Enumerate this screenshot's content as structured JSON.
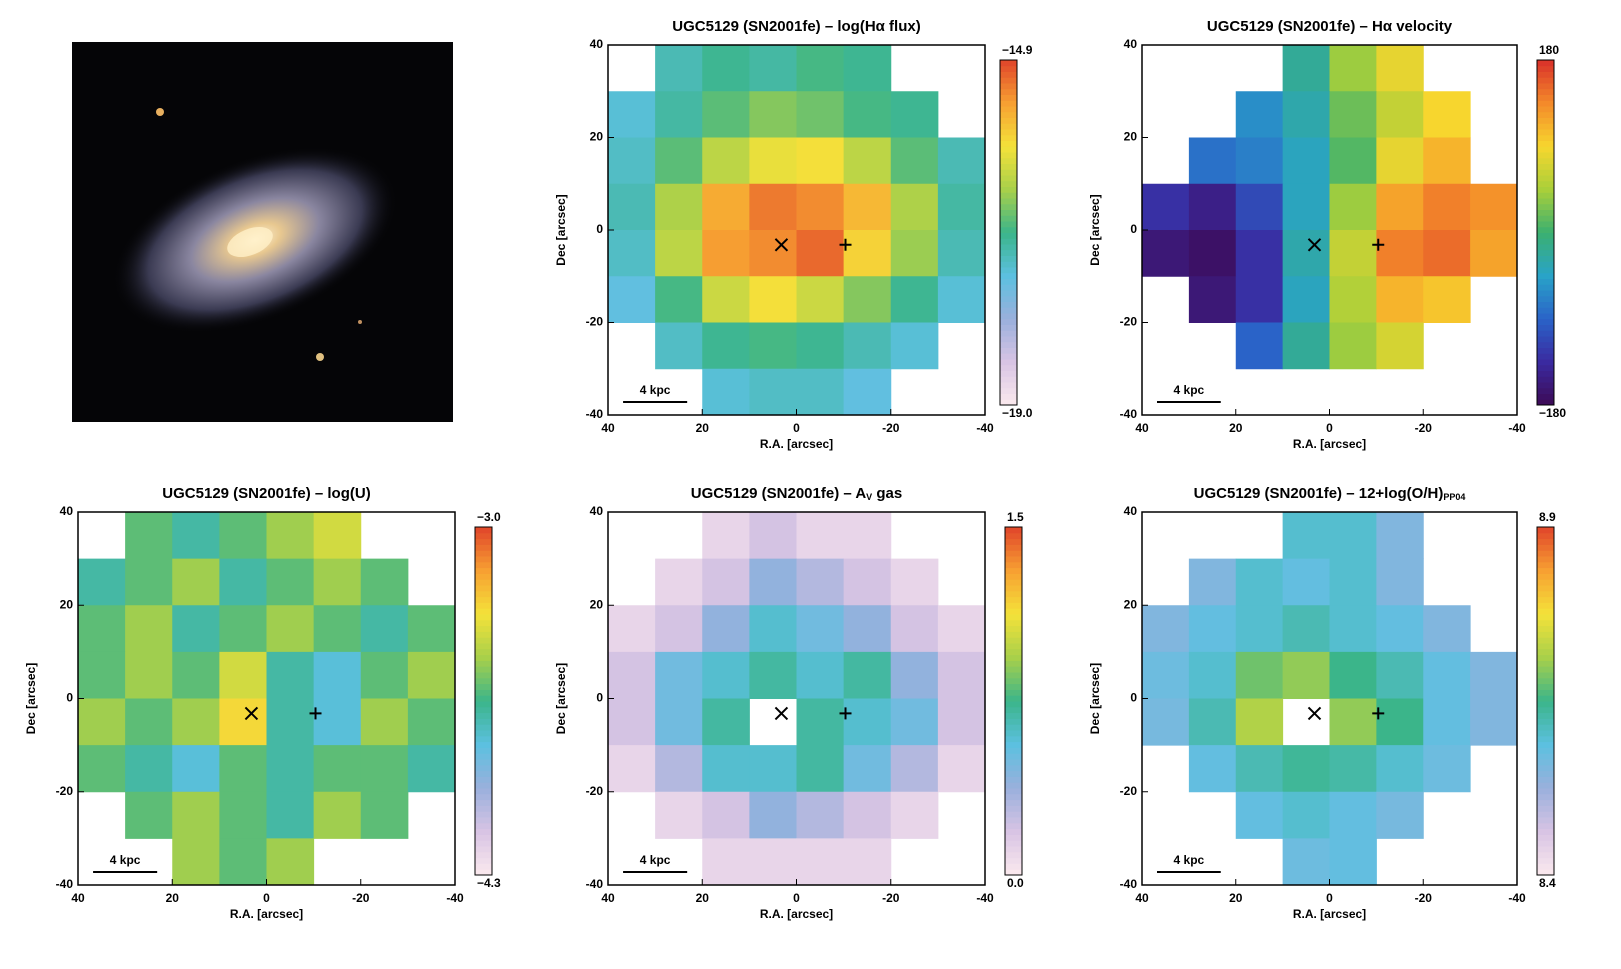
{
  "chart_data": [
    {
      "type": "heatmap",
      "title": "UGC5129 (SN2001fe) – log(Hα flux)",
      "xlabel": "R.A. [arcsec]",
      "ylabel": "Dec [arcsec]",
      "xlim": [
        40,
        -40
      ],
      "ylim": [
        -40,
        40
      ],
      "xticks": [
        40,
        20,
        0,
        -20,
        -40
      ],
      "yticks": [
        -40,
        -20,
        0,
        20,
        40
      ],
      "zlim": [
        -19.0,
        -14.9
      ],
      "zticks": [
        {
          "value": -19.0,
          "label": "−19.0"
        },
        {
          "value": -14.9,
          "label": "−14.9"
        }
      ],
      "colormap": "pink-rainbow",
      "scale_label": "4 kpc",
      "values": [
        [
          null,
          -17.2,
          -17.0,
          -17.1,
          -16.9,
          -17.0,
          null,
          null
        ],
        [
          -17.4,
          -17.1,
          -16.8,
          -16.6,
          -16.7,
          -16.9,
          -17.0,
          null
        ],
        [
          -17.3,
          -16.8,
          -16.3,
          -16.0,
          -15.9,
          -16.3,
          -16.8,
          -17.2
        ],
        [
          -17.2,
          -16.4,
          -15.5,
          -15.2,
          -15.3,
          -15.6,
          -16.4,
          -17.1
        ],
        [
          -17.3,
          -16.3,
          -15.4,
          -15.3,
          -15.1,
          -15.8,
          -16.5,
          -17.2
        ],
        [
          -17.5,
          -16.9,
          -16.2,
          -15.9,
          -16.2,
          -16.6,
          -17.0,
          -17.4
        ],
        [
          null,
          -17.3,
          -17.0,
          -16.9,
          -17.0,
          -17.2,
          -17.4,
          null
        ],
        [
          null,
          null,
          -17.4,
          -17.3,
          -17.3,
          -17.5,
          null,
          null
        ]
      ]
    },
    {
      "type": "heatmap",
      "title": "UGC5129 (SN2001fe) – Hα velocity",
      "xlabel": "R.A. [arcsec]",
      "ylabel": "Dec [arcsec]",
      "xlim": [
        40,
        -40
      ],
      "ylim": [
        -40,
        40
      ],
      "xticks": [
        40,
        20,
        0,
        -20,
        -40
      ],
      "yticks": [
        -40,
        -20,
        0,
        20,
        40
      ],
      "zlim": [
        -180,
        180
      ],
      "zticks": [
        {
          "value": -180,
          "label": "−180"
        },
        180
      ],
      "colormap": "rainbow",
      "scale_label": "4 kpc",
      "values": [
        [
          null,
          null,
          null,
          -20,
          40,
          80,
          null,
          null
        ],
        [
          null,
          null,
          -60,
          -30,
          20,
          60,
          90,
          null
        ],
        [
          null,
          -80,
          -70,
          -40,
          10,
          80,
          110,
          null
        ],
        [
          -130,
          -150,
          -110,
          -40,
          40,
          120,
          140,
          130
        ],
        [
          -160,
          -170,
          -130,
          -30,
          60,
          140,
          150,
          120
        ],
        [
          null,
          -160,
          -130,
          -40,
          50,
          110,
          100,
          null
        ],
        [
          null,
          null,
          -90,
          -20,
          40,
          70,
          null,
          null
        ],
        [
          null,
          null,
          null,
          null,
          null,
          null,
          null,
          null
        ]
      ]
    },
    {
      "type": "heatmap",
      "title": "UGC5129 (SN2001fe) – log(U)",
      "xlabel": "R.A. [arcsec]",
      "ylabel": "Dec [arcsec]",
      "xlim": [
        40,
        -40
      ],
      "ylim": [
        -40,
        40
      ],
      "xticks": [
        40,
        20,
        0,
        -20,
        -40
      ],
      "yticks": [
        -40,
        -20,
        0,
        20,
        40
      ],
      "zlim": [
        -4.3,
        -3.0
      ],
      "zticks": [
        {
          "value": -4.3,
          "label": "−4.3"
        },
        {
          "value": -3.0,
          "label": "−3.0"
        }
      ],
      "colormap": "pink-rainbow",
      "scale_label": "4 kpc",
      "values": [
        [
          null,
          -3.6,
          -3.7,
          -3.6,
          -3.5,
          -3.4,
          null,
          null
        ],
        [
          -3.7,
          -3.6,
          -3.5,
          -3.7,
          -3.6,
          -3.5,
          -3.6,
          null
        ],
        [
          -3.6,
          -3.5,
          -3.7,
          -3.6,
          -3.5,
          -3.6,
          -3.7,
          -3.6
        ],
        [
          -3.6,
          -3.5,
          -3.6,
          -3.4,
          -3.7,
          -3.8,
          -3.6,
          -3.5
        ],
        [
          -3.5,
          -3.6,
          -3.5,
          -3.3,
          -3.7,
          -3.8,
          -3.5,
          -3.6
        ],
        [
          -3.6,
          -3.7,
          -3.8,
          -3.6,
          -3.7,
          -3.6,
          -3.6,
          -3.7
        ],
        [
          null,
          -3.6,
          -3.5,
          -3.6,
          -3.7,
          -3.5,
          -3.6,
          null
        ],
        [
          null,
          null,
          -3.5,
          -3.6,
          -3.5,
          null,
          null,
          null
        ]
      ]
    },
    {
      "type": "heatmap",
      "title": "UGC5129 (SN2001fe) – A",
      "title_sub": "V",
      "title_tail": " gas",
      "xlabel": "R.A. [arcsec]",
      "ylabel": "Dec [arcsec]",
      "xlim": [
        40,
        -40
      ],
      "ylim": [
        -40,
        40
      ],
      "xticks": [
        40,
        20,
        0,
        -20,
        -40
      ],
      "yticks": [
        -40,
        -20,
        0,
        20,
        40
      ],
      "zlim": [
        0.0,
        1.5
      ],
      "zticks": [
        {
          "value": 0.0,
          "label": "0.0"
        },
        1.5
      ],
      "colormap": "pink-rainbow",
      "scale_label": "4 kpc",
      "values": [
        [
          null,
          null,
          0.1,
          0.2,
          0.1,
          0.1,
          null,
          null
        ],
        [
          null,
          0.1,
          0.2,
          0.4,
          0.3,
          0.2,
          0.1,
          null
        ],
        [
          0.1,
          0.2,
          0.4,
          0.6,
          0.5,
          0.4,
          0.2,
          0.1
        ],
        [
          0.2,
          0.5,
          0.6,
          0.7,
          0.6,
          0.7,
          0.4,
          0.2
        ],
        [
          0.2,
          0.5,
          0.7,
          null,
          0.7,
          0.6,
          0.5,
          0.2
        ],
        [
          0.1,
          0.3,
          0.6,
          0.6,
          0.7,
          0.5,
          0.3,
          0.1
        ],
        [
          null,
          0.1,
          0.2,
          0.4,
          0.3,
          0.2,
          0.1,
          null
        ],
        [
          null,
          null,
          0.1,
          0.1,
          0.1,
          0.1,
          null,
          null
        ]
      ]
    },
    {
      "type": "heatmap",
      "title": "UGC5129 (SN2001fe) – 12+log(O/H)",
      "title_sub": "PP04",
      "xlabel": "R.A. [arcsec]",
      "ylabel": "Dec [arcsec]",
      "xlim": [
        40,
        -40
      ],
      "ylim": [
        -40,
        40
      ],
      "xticks": [
        40,
        20,
        0,
        -20,
        -40
      ],
      "yticks": [
        -40,
        -20,
        0,
        20,
        40
      ],
      "zlim": [
        8.4,
        8.9
      ],
      "zticks": [
        8.4,
        8.9
      ],
      "colormap": "pink-rainbow",
      "scale_label": "4 kpc",
      "values": [
        [
          null,
          null,
          null,
          8.6,
          8.6,
          8.55,
          null,
          null
        ],
        [
          null,
          8.55,
          8.6,
          8.58,
          8.6,
          8.55,
          null,
          null
        ],
        [
          8.55,
          8.58,
          8.6,
          8.62,
          8.6,
          8.58,
          8.55,
          null
        ],
        [
          8.57,
          8.6,
          8.68,
          8.7,
          8.65,
          8.62,
          8.58,
          8.55
        ],
        [
          8.56,
          8.62,
          8.72,
          null,
          8.7,
          8.65,
          8.58,
          8.55
        ],
        [
          null,
          8.58,
          8.62,
          8.64,
          8.63,
          8.6,
          8.57,
          null
        ],
        [
          null,
          null,
          8.58,
          8.6,
          8.58,
          8.56,
          null,
          null
        ],
        [
          null,
          null,
          null,
          8.57,
          8.58,
          null,
          null,
          null
        ]
      ]
    }
  ]
}
